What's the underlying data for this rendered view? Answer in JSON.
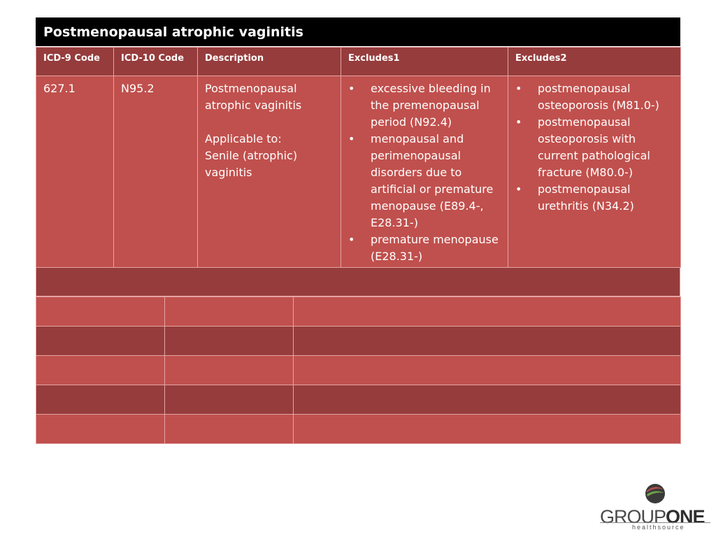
{
  "title": "Postmenopausal atrophic vaginitis",
  "table": {
    "headers": {
      "icd9": "ICD-9 Code",
      "icd10": "ICD-10 Code",
      "description": "Description",
      "excludes1": "Excludes1",
      "excludes2": "Excludes2"
    },
    "row": {
      "icd9": "627.1",
      "icd10": "N95.2",
      "description": "Postmenopausal atrophic vaginitis",
      "applicable_label": "Applicable to:",
      "applicable_text": "Senile (atrophic) vaginitis",
      "excludes1": [
        "excessive bleeding in the premenopausal period (N92.4)",
        "menopausal and perimenopausal disorders due to artificial or premature menopause (E89.4-, E28.31-)",
        "premature menopause (E28.31-)"
      ],
      "excludes2": [
        "postmenopausal osteoporosis (M81.0-)",
        "postmenopausal osteoporosis with current pathological fracture (M80.0-)",
        "postmenopausal urethritis (N34.2)"
      ]
    }
  },
  "logo": {
    "word_part1": "GROUP",
    "word_part2": "ONE",
    "subtitle": "healthsource"
  },
  "colors": {
    "header_dark": "#963c3c",
    "row_light": "#c0504d",
    "title_bar": "#000000"
  }
}
